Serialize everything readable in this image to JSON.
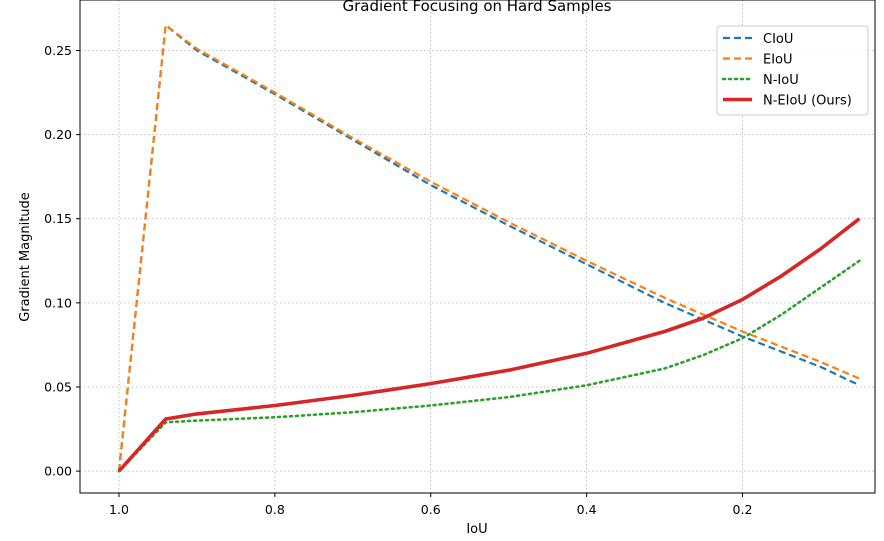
{
  "chart_data": {
    "type": "line",
    "title": "Gradient Focusing on Hard Samples",
    "xlabel": "IoU",
    "ylabel": "Gradient Magnitude",
    "xlim": [
      1.05,
      0.03
    ],
    "ylim": [
      -0.013,
      0.28
    ],
    "x_inverted": true,
    "xticks": [
      1.0,
      0.8,
      0.6,
      0.4,
      0.2
    ],
    "xtick_labels": [
      "1.0",
      "0.8",
      "0.6",
      "0.4",
      "0.2"
    ],
    "yticks": [
      0.0,
      0.05,
      0.1,
      0.15,
      0.2,
      0.25
    ],
    "ytick_labels": [
      "0.00",
      "0.05",
      "0.10",
      "0.15",
      "0.20",
      "0.25"
    ],
    "grid": true,
    "legend_position": "top-right",
    "series": [
      {
        "name": "CIoU",
        "color": "#1f77b4",
        "style": "dashed",
        "x": [
          1.0,
          0.94,
          0.9,
          0.8,
          0.7,
          0.6,
          0.5,
          0.4,
          0.3,
          0.2,
          0.1,
          0.05
        ],
        "y": [
          0.0,
          0.265,
          0.25,
          0.224,
          0.197,
          0.17,
          0.146,
          0.123,
          0.1,
          0.08,
          0.062,
          0.051
        ]
      },
      {
        "name": "EIoU",
        "color": "#ff7f0e",
        "style": "dashed",
        "x": [
          1.0,
          0.94,
          0.9,
          0.8,
          0.7,
          0.6,
          0.5,
          0.4,
          0.3,
          0.2,
          0.1,
          0.05
        ],
        "y": [
          0.0,
          0.265,
          0.251,
          0.225,
          0.198,
          0.172,
          0.148,
          0.125,
          0.103,
          0.083,
          0.065,
          0.055
        ]
      },
      {
        "name": "N-IoU",
        "color": "#2ca02c",
        "style": "dotted",
        "x": [
          1.0,
          0.94,
          0.9,
          0.8,
          0.7,
          0.6,
          0.5,
          0.4,
          0.3,
          0.25,
          0.2,
          0.15,
          0.1,
          0.05
        ],
        "y": [
          0.0,
          0.029,
          0.03,
          0.032,
          0.035,
          0.039,
          0.044,
          0.051,
          0.061,
          0.069,
          0.079,
          0.093,
          0.109,
          0.125
        ]
      },
      {
        "name": "N-EIoU (Ours)",
        "color": "#d62728",
        "style": "solid",
        "x": [
          1.0,
          0.94,
          0.9,
          0.8,
          0.7,
          0.6,
          0.5,
          0.4,
          0.3,
          0.25,
          0.2,
          0.15,
          0.1,
          0.05
        ],
        "y": [
          0.0,
          0.031,
          0.034,
          0.039,
          0.045,
          0.052,
          0.06,
          0.07,
          0.083,
          0.091,
          0.102,
          0.116,
          0.132,
          0.15
        ]
      }
    ]
  }
}
